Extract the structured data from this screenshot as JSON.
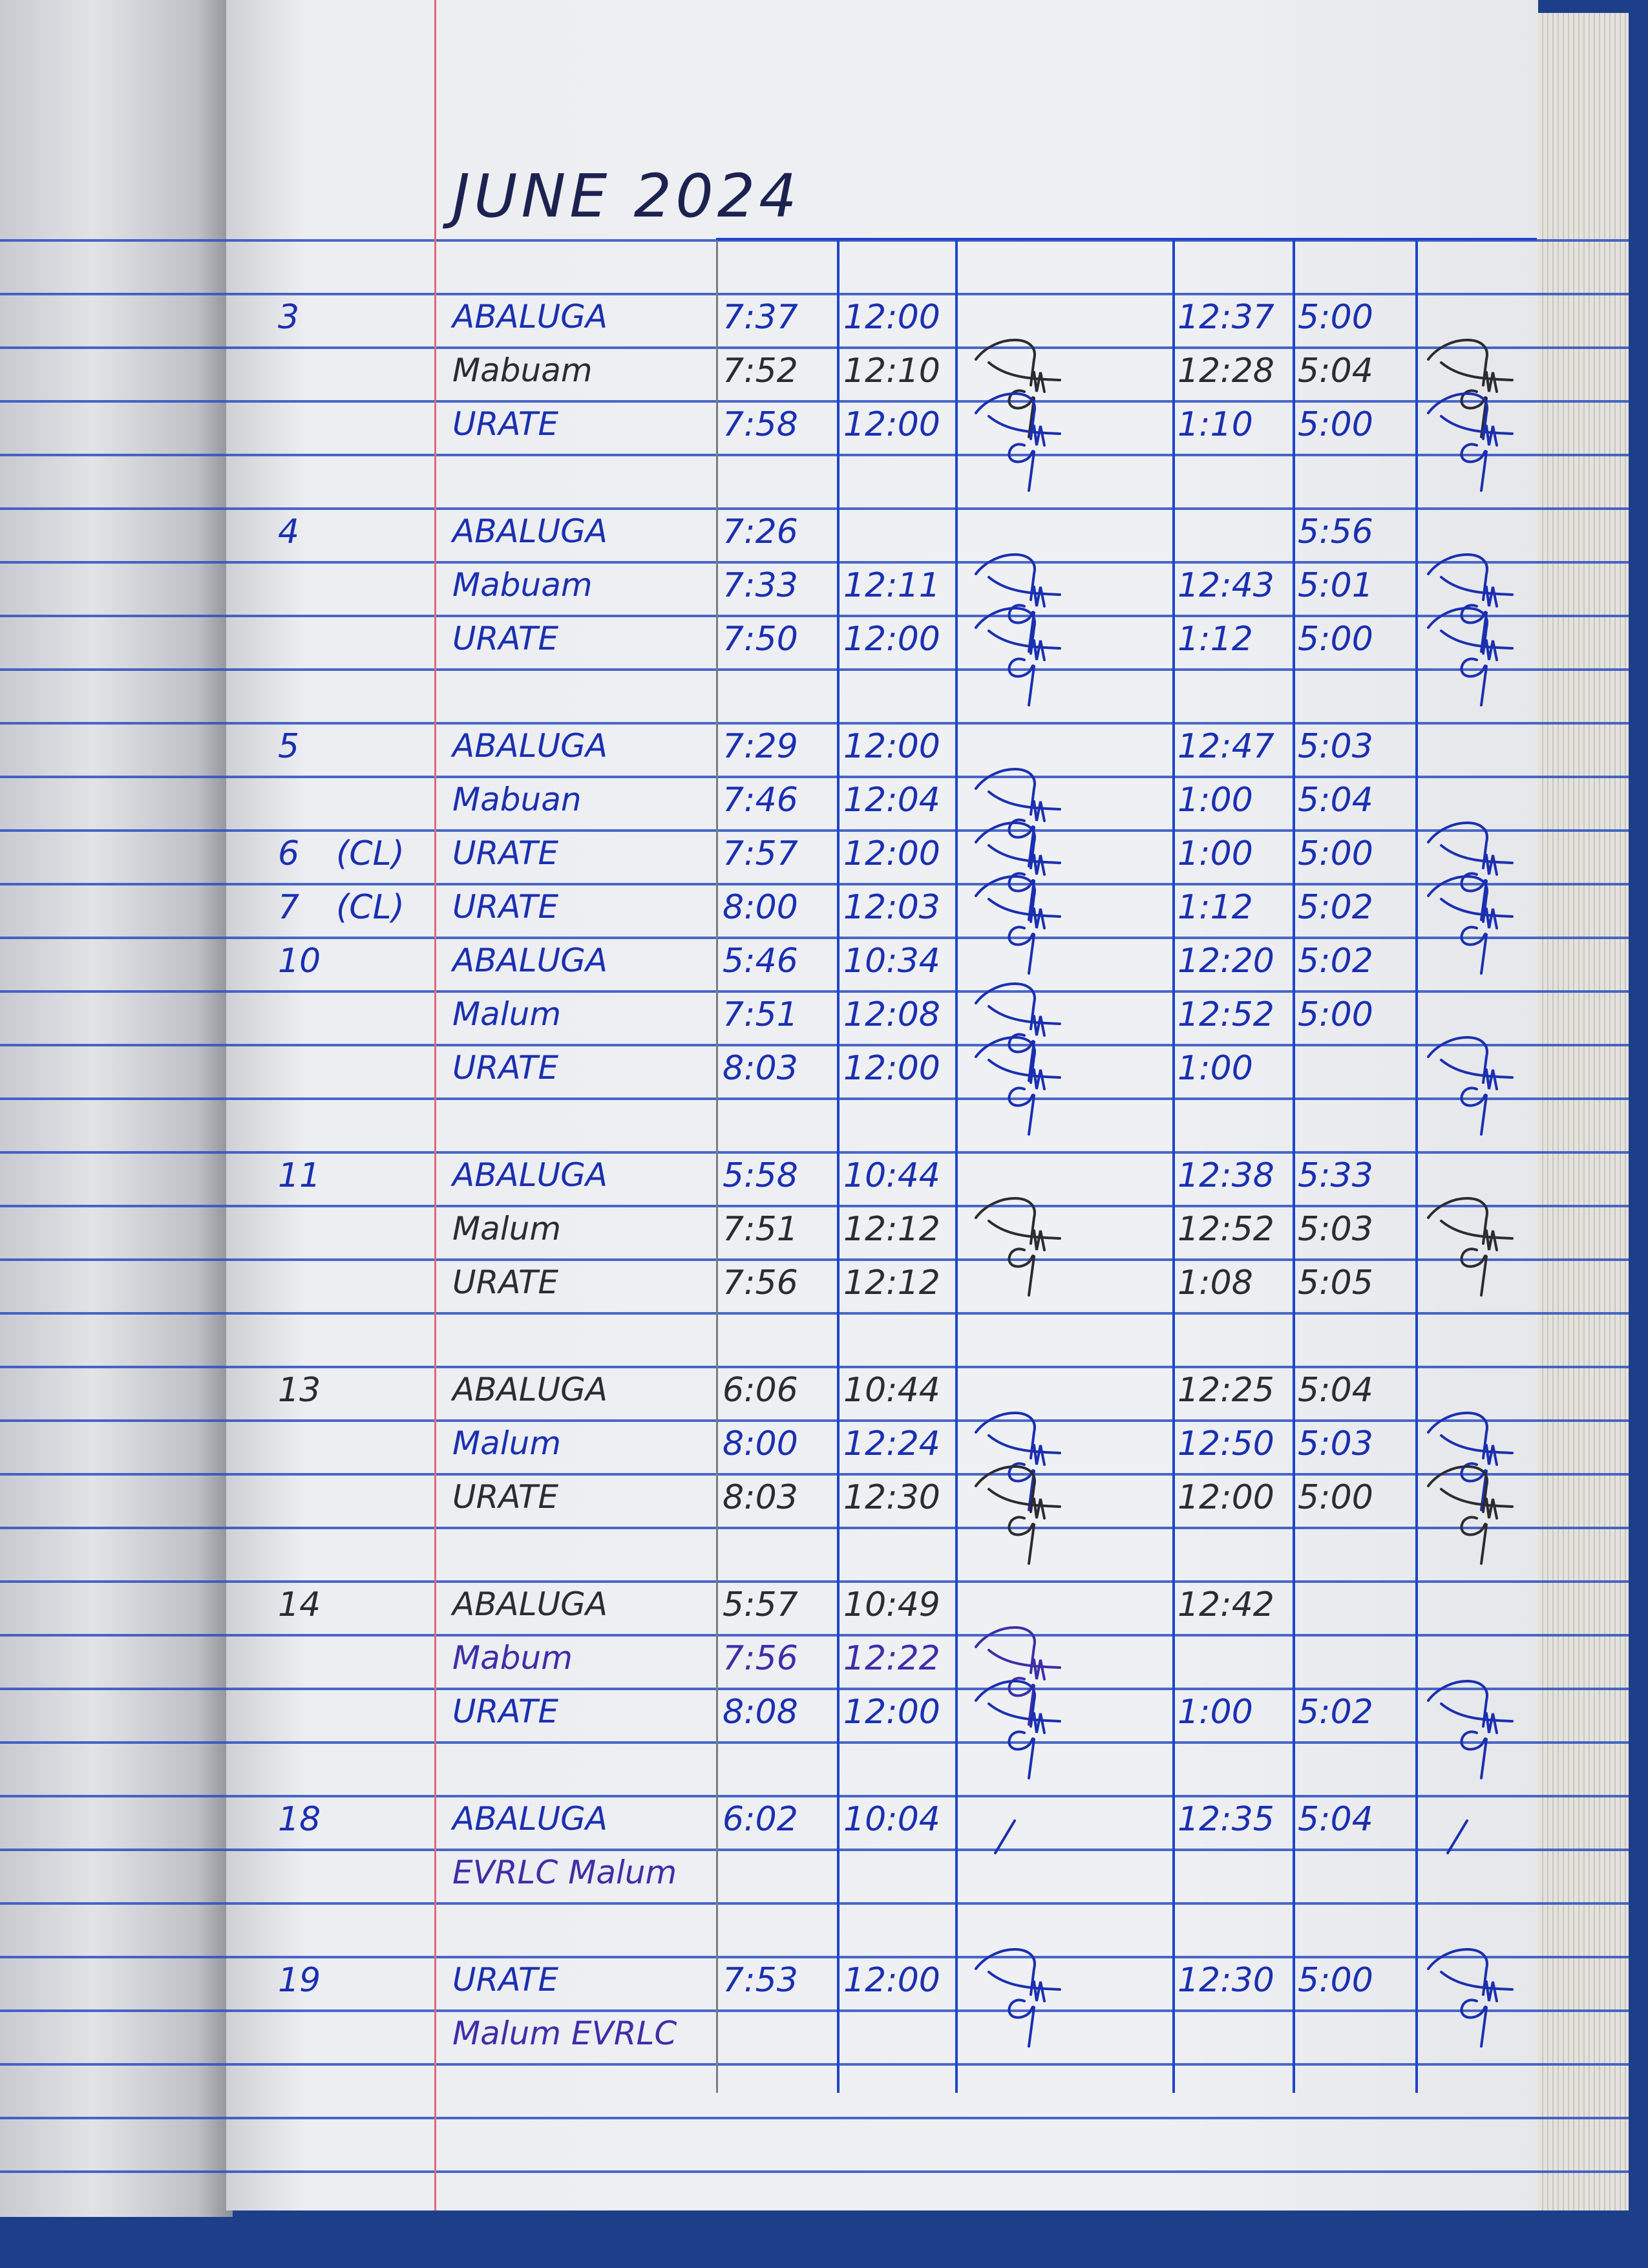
{
  "title": "JUNE 2024",
  "colors": {
    "blue_ink": "#1a2fb0",
    "dark_ink": "#2b2b33",
    "violet_ink": "#3b2fa8",
    "rule_blue": "#2d4fc0",
    "margin_red": "#e06a78"
  },
  "rows": [
    {
      "day": "",
      "note": "",
      "name": "",
      "in1": "",
      "out1": "",
      "sig1": "",
      "in2": "",
      "out2": "",
      "sig2": "",
      "ink": "blue"
    },
    {
      "day": "3",
      "note": "",
      "name": "ABALUGA",
      "in1": "7:37",
      "out1": "12:00",
      "sig1": "",
      "in2": "12:37",
      "out2": "5:00",
      "sig2": "",
      "ink": "blue"
    },
    {
      "day": "",
      "note": "",
      "name": "Mabuam",
      "in1": "7:52",
      "out1": "12:10",
      "sig1": "signature",
      "in2": "12:28",
      "out2": "5:04",
      "sig2": "signature",
      "ink": "dark"
    },
    {
      "day": "",
      "note": "",
      "name": "URATE",
      "in1": "7:58",
      "out1": "12:00",
      "sig1": "signature",
      "in2": "1:10",
      "out2": "5:00",
      "sig2": "signature",
      "ink": "blue"
    },
    {
      "day": "",
      "note": "",
      "name": "",
      "in1": "",
      "out1": "",
      "sig1": "",
      "in2": "",
      "out2": "",
      "sig2": "",
      "ink": "blue"
    },
    {
      "day": "4",
      "note": "",
      "name": "ABALUGA",
      "in1": "7:26",
      "out1": "",
      "sig1": "",
      "in2": "",
      "out2": "5:56",
      "sig2": "",
      "ink": "blue"
    },
    {
      "day": "",
      "note": "",
      "name": "Mabuam",
      "in1": "7:33",
      "out1": "12:11",
      "sig1": "signature",
      "in2": "12:43",
      "out2": "5:01",
      "sig2": "signature",
      "ink": "blue"
    },
    {
      "day": "",
      "note": "",
      "name": "URATE",
      "in1": "7:50",
      "out1": "12:00",
      "sig1": "signature",
      "in2": "1:12",
      "out2": "5:00",
      "sig2": "signature",
      "ink": "blue"
    },
    {
      "day": "",
      "note": "",
      "name": "",
      "in1": "",
      "out1": "",
      "sig1": "",
      "in2": "",
      "out2": "",
      "sig2": "",
      "ink": "blue"
    },
    {
      "day": "5",
      "note": "",
      "name": "ABALUGA",
      "in1": "7:29",
      "out1": "12:00",
      "sig1": "",
      "in2": "12:47",
      "out2": "5:03",
      "sig2": "",
      "ink": "blue"
    },
    {
      "day": "",
      "note": "",
      "name": "Mabuan",
      "in1": "7:46",
      "out1": "12:04",
      "sig1": "signature",
      "in2": "1:00",
      "out2": "5:04",
      "sig2": "",
      "ink": "blue"
    },
    {
      "day": "6",
      "note": "(CL)",
      "name": "URATE",
      "in1": "7:57",
      "out1": "12:00",
      "sig1": "signature",
      "in2": "1:00",
      "out2": "5:00",
      "sig2": "signature",
      "ink": "blue"
    },
    {
      "day": "7",
      "note": "(CL)",
      "name": "URATE",
      "in1": "8:00",
      "out1": "12:03",
      "sig1": "signature",
      "in2": "1:12",
      "out2": "5:02",
      "sig2": "signature",
      "ink": "blue"
    },
    {
      "day": "10",
      "note": "",
      "name": "ABALUGA",
      "in1": "5:46",
      "out1": "10:34",
      "sig1": "",
      "in2": "12:20",
      "out2": "5:02",
      "sig2": "",
      "ink": "blue"
    },
    {
      "day": "",
      "note": "",
      "name": "Malum",
      "in1": "7:51",
      "out1": "12:08",
      "sig1": "signature",
      "in2": "12:52",
      "out2": "5:00",
      "sig2": "",
      "ink": "blue"
    },
    {
      "day": "",
      "note": "",
      "name": "URATE",
      "in1": "8:03",
      "out1": "12:00",
      "sig1": "signature",
      "in2": "1:00",
      "out2": "",
      "sig2": "signature",
      "ink": "blue"
    },
    {
      "day": "",
      "note": "",
      "name": "",
      "in1": "",
      "out1": "",
      "sig1": "",
      "in2": "",
      "out2": "",
      "sig2": "",
      "ink": "blue"
    },
    {
      "day": "11",
      "note": "",
      "name": "ABALUGA",
      "in1": "5:58",
      "out1": "10:44",
      "sig1": "",
      "in2": "12:38",
      "out2": "5:33",
      "sig2": "",
      "ink": "blue"
    },
    {
      "day": "",
      "note": "",
      "name": "Malum",
      "in1": "7:51",
      "out1": "12:12",
      "sig1": "signature",
      "in2": "12:52",
      "out2": "5:03",
      "sig2": "signature",
      "ink": "dark"
    },
    {
      "day": "",
      "note": "",
      "name": "URATE",
      "in1": "7:56",
      "out1": "12:12",
      "sig1": "",
      "in2": "1:08",
      "out2": "5:05",
      "sig2": "",
      "ink": "dark"
    },
    {
      "day": "",
      "note": "",
      "name": "",
      "in1": "",
      "out1": "",
      "sig1": "",
      "in2": "",
      "out2": "",
      "sig2": "",
      "ink": "blue"
    },
    {
      "day": "13",
      "note": "",
      "name": "ABALUGA",
      "in1": "6:06",
      "out1": "10:44",
      "sig1": "",
      "in2": "12:25",
      "out2": "5:04",
      "sig2": "",
      "ink": "dark"
    },
    {
      "day": "",
      "note": "",
      "name": "Malum",
      "in1": "8:00",
      "out1": "12:24",
      "sig1": "signature",
      "in2": "12:50",
      "out2": "5:03",
      "sig2": "signature",
      "ink": "blue"
    },
    {
      "day": "",
      "note": "",
      "name": "URATE",
      "in1": "8:03",
      "out1": "12:30",
      "sig1": "signature",
      "in2": "12:00",
      "out2": "5:00",
      "sig2": "signature",
      "ink": "dark"
    },
    {
      "day": "",
      "note": "",
      "name": "",
      "in1": "",
      "out1": "",
      "sig1": "",
      "in2": "",
      "out2": "",
      "sig2": "",
      "ink": "blue"
    },
    {
      "day": "14",
      "note": "",
      "name": "ABALUGA",
      "in1": "5:57",
      "out1": "10:49",
      "sig1": "",
      "in2": "12:42",
      "out2": "",
      "sig2": "",
      "ink": "dark"
    },
    {
      "day": "",
      "note": "",
      "name": "Mabum",
      "in1": "7:56",
      "out1": "12:22",
      "sig1": "signature",
      "in2": "",
      "out2": "",
      "sig2": "",
      "ink": "violet"
    },
    {
      "day": "",
      "note": "",
      "name": "URATE",
      "in1": "8:08",
      "out1": "12:00",
      "sig1": "signature",
      "in2": "1:00",
      "out2": "5:02",
      "sig2": "signature",
      "ink": "blue"
    },
    {
      "day": "",
      "note": "",
      "name": "",
      "in1": "",
      "out1": "",
      "sig1": "",
      "in2": "",
      "out2": "",
      "sig2": "",
      "ink": "blue"
    },
    {
      "day": "18",
      "note": "",
      "name": "ABALUGA",
      "in1": "6:02",
      "out1": "10:04",
      "sig1": "check",
      "in2": "12:35",
      "out2": "5:04",
      "sig2": "check",
      "ink": "blue"
    },
    {
      "day": "",
      "note": "",
      "name": "EVRLC Malum",
      "in1": "",
      "out1": "",
      "sig1": "",
      "in2": "",
      "out2": "",
      "sig2": "",
      "ink": "violet"
    },
    {
      "day": "",
      "note": "",
      "name": "",
      "in1": "",
      "out1": "",
      "sig1": "",
      "in2": "",
      "out2": "",
      "sig2": "",
      "ink": "blue"
    },
    {
      "day": "19",
      "note": "",
      "name": "URATE",
      "in1": "7:53",
      "out1": "12:00",
      "sig1": "signature",
      "in2": "12:30",
      "out2": "5:00",
      "sig2": "signature",
      "ink": "blue"
    },
    {
      "day": "",
      "note": "",
      "name": "Malum EVRLC",
      "in1": "",
      "out1": "",
      "sig1": "",
      "in2": "",
      "out2": "",
      "sig2": "",
      "ink": "violet"
    }
  ]
}
